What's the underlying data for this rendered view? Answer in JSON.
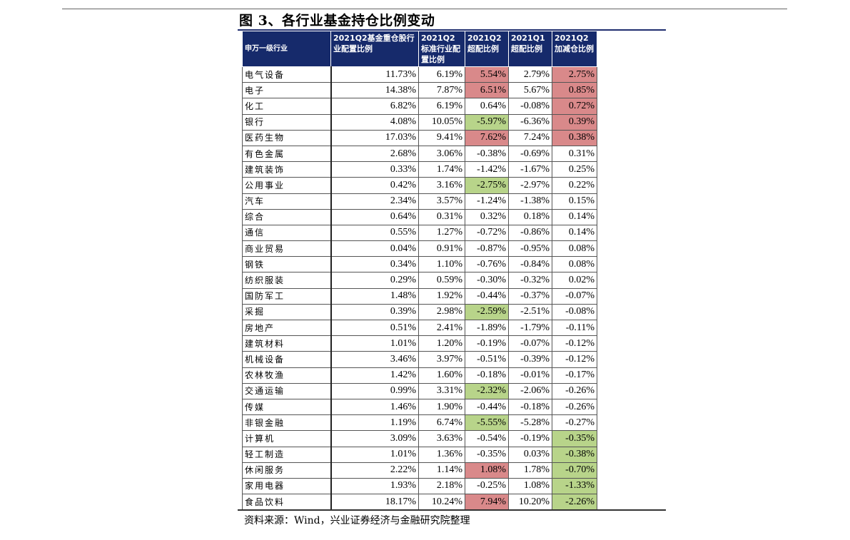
{
  "title": "图 3、各行业基金持仓比例变动",
  "source": "资料来源：Wind，兴业证券经济与金融研究院整理",
  "headers": [
    "申万一级行业",
    "2021Q2基金重仓股行业配置比例",
    "2021Q2标准行业配置比例",
    "2021Q2超配比例",
    "2021Q1超配比例",
    "2021Q2加减仓比例"
  ],
  "colors": {
    "header_bg": "#162a6b",
    "overweight": "#d9898a",
    "underweight": "#b8d48a"
  },
  "rows": [
    {
      "name": "电气设备",
      "c1": "11.73%",
      "c2": "6.19%",
      "c3": "5.54%",
      "c4": "2.79%",
      "c5": "2.75%",
      "h3": "pos",
      "h5": "pos"
    },
    {
      "name": "电子",
      "c1": "14.38%",
      "c2": "7.87%",
      "c3": "6.51%",
      "c4": "5.67%",
      "c5": "0.85%",
      "h3": "pos",
      "h5": "pos"
    },
    {
      "name": "化工",
      "c1": "6.82%",
      "c2": "6.19%",
      "c3": "0.64%",
      "c4": "-0.08%",
      "c5": "0.72%",
      "h3": "",
      "h5": "pos"
    },
    {
      "name": "银行",
      "c1": "4.08%",
      "c2": "10.05%",
      "c3": "-5.97%",
      "c4": "-6.36%",
      "c5": "0.39%",
      "h3": "neg",
      "h5": "pos"
    },
    {
      "name": "医药生物",
      "c1": "17.03%",
      "c2": "9.41%",
      "c3": "7.62%",
      "c4": "7.24%",
      "c5": "0.38%",
      "h3": "pos",
      "h5": "pos"
    },
    {
      "name": "有色金属",
      "c1": "2.68%",
      "c2": "3.06%",
      "c3": "-0.38%",
      "c4": "-0.69%",
      "c5": "0.31%",
      "h3": "",
      "h5": ""
    },
    {
      "name": "建筑装饰",
      "c1": "0.33%",
      "c2": "1.74%",
      "c3": "-1.42%",
      "c4": "-1.67%",
      "c5": "0.25%",
      "h3": "",
      "h5": ""
    },
    {
      "name": "公用事业",
      "c1": "0.42%",
      "c2": "3.16%",
      "c3": "-2.75%",
      "c4": "-2.97%",
      "c5": "0.22%",
      "h3": "neg",
      "h5": ""
    },
    {
      "name": "汽车",
      "c1": "2.34%",
      "c2": "3.57%",
      "c3": "-1.24%",
      "c4": "-1.38%",
      "c5": "0.15%",
      "h3": "",
      "h5": ""
    },
    {
      "name": "综合",
      "c1": "0.64%",
      "c2": "0.31%",
      "c3": "0.32%",
      "c4": "0.18%",
      "c5": "0.14%",
      "h3": "",
      "h5": ""
    },
    {
      "name": "通信",
      "c1": "0.55%",
      "c2": "1.27%",
      "c3": "-0.72%",
      "c4": "-0.86%",
      "c5": "0.14%",
      "h3": "",
      "h5": ""
    },
    {
      "name": "商业贸易",
      "c1": "0.04%",
      "c2": "0.91%",
      "c3": "-0.87%",
      "c4": "-0.95%",
      "c5": "0.08%",
      "h3": "",
      "h5": ""
    },
    {
      "name": "钢铁",
      "c1": "0.34%",
      "c2": "1.10%",
      "c3": "-0.76%",
      "c4": "-0.84%",
      "c5": "0.08%",
      "h3": "",
      "h5": ""
    },
    {
      "name": "纺织服装",
      "c1": "0.29%",
      "c2": "0.59%",
      "c3": "-0.30%",
      "c4": "-0.32%",
      "c5": "0.02%",
      "h3": "",
      "h5": ""
    },
    {
      "name": "国防军工",
      "c1": "1.48%",
      "c2": "1.92%",
      "c3": "-0.44%",
      "c4": "-0.37%",
      "c5": "-0.07%",
      "h3": "",
      "h5": ""
    },
    {
      "name": "采掘",
      "c1": "0.39%",
      "c2": "2.98%",
      "c3": "-2.59%",
      "c4": "-2.51%",
      "c5": "-0.08%",
      "h3": "neg",
      "h5": ""
    },
    {
      "name": "房地产",
      "c1": "0.51%",
      "c2": "2.41%",
      "c3": "-1.89%",
      "c4": "-1.79%",
      "c5": "-0.11%",
      "h3": "",
      "h5": ""
    },
    {
      "name": "建筑材料",
      "c1": "1.01%",
      "c2": "1.20%",
      "c3": "-0.19%",
      "c4": "-0.07%",
      "c5": "-0.12%",
      "h3": "",
      "h5": ""
    },
    {
      "name": "机械设备",
      "c1": "3.46%",
      "c2": "3.97%",
      "c3": "-0.51%",
      "c4": "-0.39%",
      "c5": "-0.12%",
      "h3": "",
      "h5": ""
    },
    {
      "name": "农林牧渔",
      "c1": "1.42%",
      "c2": "1.60%",
      "c3": "-0.18%",
      "c4": "-0.01%",
      "c5": "-0.17%",
      "h3": "",
      "h5": ""
    },
    {
      "name": "交通运输",
      "c1": "0.99%",
      "c2": "3.31%",
      "c3": "-2.32%",
      "c4": "-2.06%",
      "c5": "-0.26%",
      "h3": "neg",
      "h5": ""
    },
    {
      "name": "传媒",
      "c1": "1.46%",
      "c2": "1.90%",
      "c3": "-0.44%",
      "c4": "-0.18%",
      "c5": "-0.26%",
      "h3": "",
      "h5": ""
    },
    {
      "name": "非银金融",
      "c1": "1.19%",
      "c2": "6.74%",
      "c3": "-5.55%",
      "c4": "-5.28%",
      "c5": "-0.27%",
      "h3": "neg",
      "h5": ""
    },
    {
      "name": "计算机",
      "c1": "3.09%",
      "c2": "3.63%",
      "c3": "-0.54%",
      "c4": "-0.19%",
      "c5": "-0.35%",
      "h3": "",
      "h5": "neg"
    },
    {
      "name": "轻工制造",
      "c1": "1.01%",
      "c2": "1.36%",
      "c3": "-0.35%",
      "c4": "0.03%",
      "c5": "-0.38%",
      "h3": "",
      "h5": "neg"
    },
    {
      "name": "休闲服务",
      "c1": "2.22%",
      "c2": "1.14%",
      "c3": "1.08%",
      "c4": "1.78%",
      "c5": "-0.70%",
      "h3": "pos",
      "h5": "neg"
    },
    {
      "name": "家用电器",
      "c1": "1.93%",
      "c2": "2.18%",
      "c3": "-0.25%",
      "c4": "1.08%",
      "c5": "-1.33%",
      "h3": "",
      "h5": "neg"
    },
    {
      "name": "食品饮料",
      "c1": "18.17%",
      "c2": "10.24%",
      "c3": "7.94%",
      "c4": "10.20%",
      "c5": "-2.26%",
      "h3": "pos",
      "h5": "neg"
    }
  ]
}
